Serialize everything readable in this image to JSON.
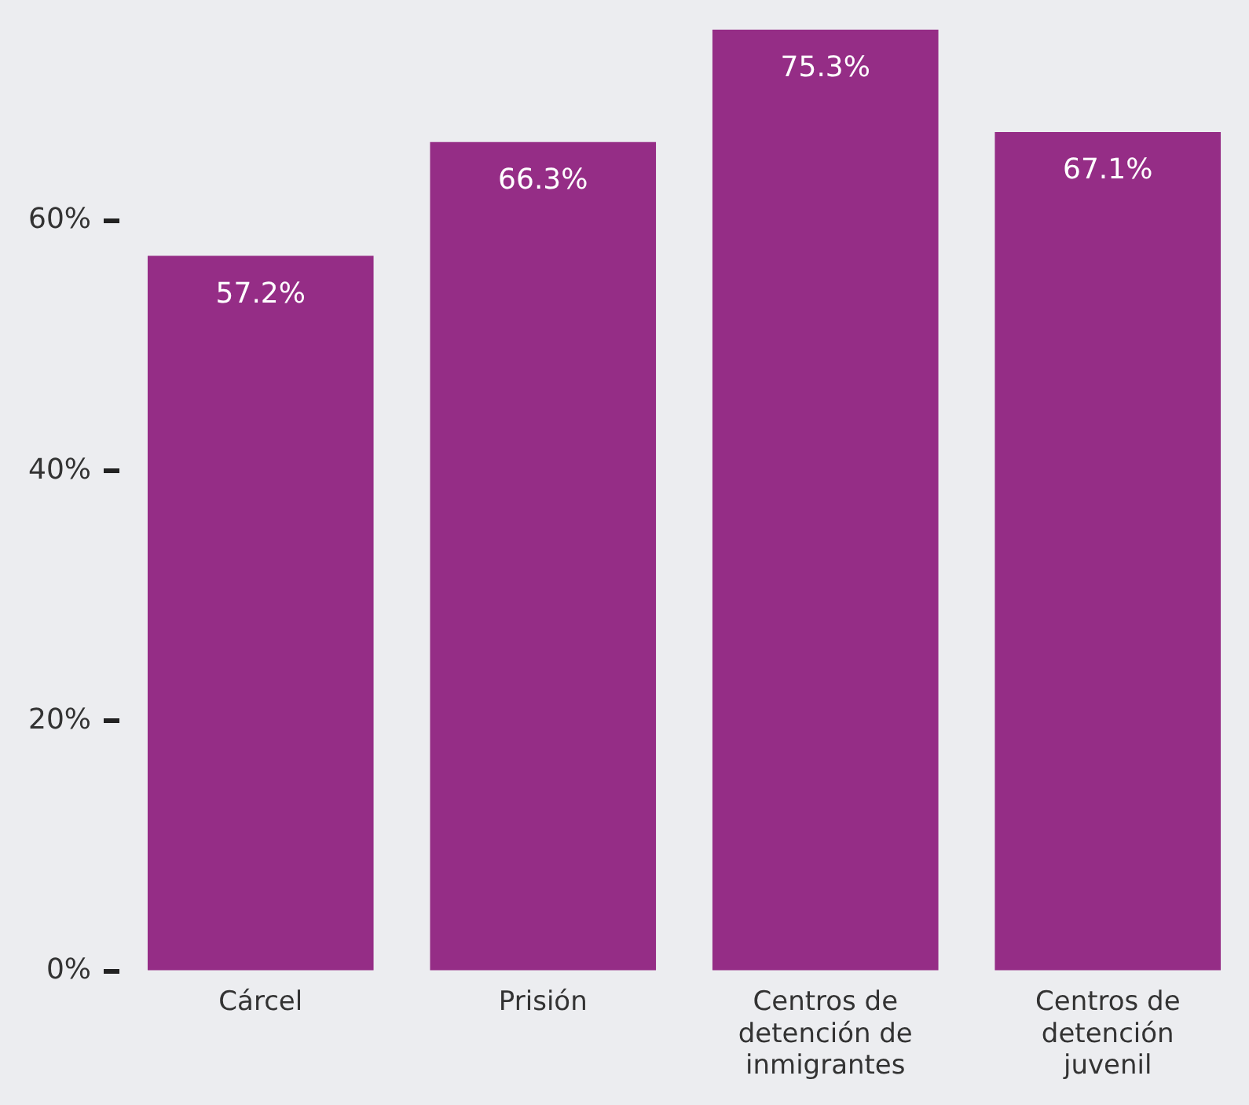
{
  "chart_data": {
    "type": "bar",
    "categories": [
      "Cárcel",
      "Prisión",
      "Centros de detención de inmigrantes",
      "Centros de detención juvenil"
    ],
    "values": [
      57.2,
      66.3,
      75.3,
      67.1
    ],
    "value_labels": [
      "57.2%",
      "66.3%",
      "75.3%",
      "67.1%"
    ],
    "color": "#952d86",
    "ylim": [
      0,
      75.3
    ],
    "yticks": [
      {
        "value": 0,
        "label": "0%"
      },
      {
        "value": 20,
        "label": "20%"
      },
      {
        "value": 40,
        "label": "40%"
      },
      {
        "value": 60,
        "label": "60%"
      }
    ],
    "grid": false,
    "legend": false
  }
}
